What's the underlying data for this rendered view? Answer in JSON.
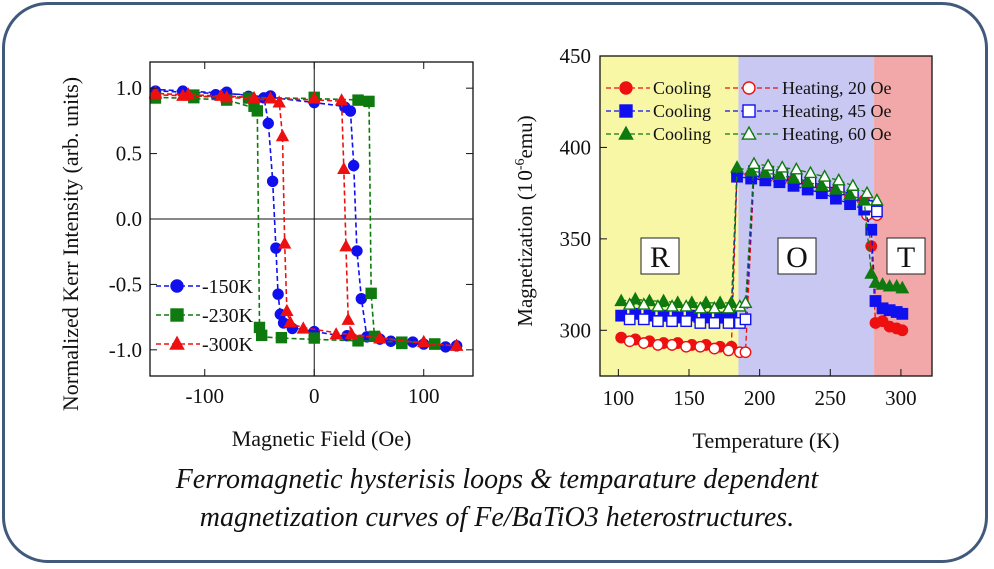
{
  "caption": {
    "line1": "Ferromagnetic hysterisis loops & temparature dependent",
    "line2": "magnetization curves of  Fe/BaTiO3 heterostructures."
  },
  "chart_data": [
    {
      "type": "line",
      "title": "",
      "xlabel": "Magnetic Field (Oe)",
      "ylabel": "Normalized Kerr Intensity (arb. units)",
      "xlim": [
        -150,
        145
      ],
      "ylim": [
        -1.2,
        1.2
      ],
      "xticks": [
        -100,
        0,
        100
      ],
      "xtick_labels": [
        "-100",
        "0",
        "100"
      ],
      "yticks": [
        1.0,
        0.5,
        0.0,
        -0.5,
        -1.0
      ],
      "ytick_labels": [
        "1.0",
        "0.5",
        "0.0",
        "-0.5",
        "-1.0"
      ],
      "zero_lines": true,
      "legend_position": "bottom-left",
      "series": [
        {
          "name": "150K",
          "color": "#1010ee",
          "marker": "circle",
          "descending": [
            [
              -145,
              0.98
            ],
            [
              -120,
              0.97
            ],
            [
              -90,
              0.96
            ],
            [
              -60,
              0.95
            ],
            [
              -46,
              0.93
            ],
            [
              -42,
              0.74
            ],
            [
              -38,
              0.3
            ],
            [
              -35,
              -0.22
            ],
            [
              -33,
              -0.58
            ],
            [
              -31,
              -0.72
            ],
            [
              -28,
              -0.8
            ],
            [
              -20,
              -0.83
            ],
            [
              0,
              -0.86
            ],
            [
              30,
              -0.9
            ],
            [
              60,
              -0.93
            ],
            [
              90,
              -0.95
            ],
            [
              120,
              -0.98
            ],
            [
              130,
              -0.98
            ]
          ],
          "ascending": [
            [
              130,
              -0.98
            ],
            [
              100,
              -0.96
            ],
            [
              70,
              -0.93
            ],
            [
              48,
              -0.9
            ],
            [
              43,
              -0.6
            ],
            [
              39,
              -0.24
            ],
            [
              36,
              0.42
            ],
            [
              33,
              0.83
            ],
            [
              28,
              0.86
            ],
            [
              0,
              0.89
            ],
            [
              -40,
              0.93
            ],
            [
              -80,
              0.96
            ],
            [
              -120,
              0.98
            ],
            [
              -145,
              0.99
            ]
          ]
        },
        {
          "name": "230K",
          "color": "#0f7a0f",
          "marker": "square",
          "descending": [
            [
              -145,
              0.93
            ],
            [
              -110,
              0.92
            ],
            [
              -80,
              0.91
            ],
            [
              -55,
              0.85
            ],
            [
              -52,
              0.82
            ],
            [
              -50,
              -0.82
            ],
            [
              -48,
              -0.9
            ],
            [
              -30,
              -0.91
            ],
            [
              0,
              -0.92
            ],
            [
              40,
              -0.93
            ],
            [
              80,
              -0.94
            ],
            [
              110,
              -0.95
            ]
          ],
          "ascending": [
            [
              110,
              -0.95
            ],
            [
              80,
              -0.93
            ],
            [
              55,
              -0.9
            ],
            [
              52,
              -0.58
            ],
            [
              50,
              0.91
            ],
            [
              40,
              0.91
            ],
            [
              0,
              0.92
            ],
            [
              -60,
              0.93
            ],
            [
              -110,
              0.94
            ]
          ]
        },
        {
          "name": "300K",
          "color": "#ee1010",
          "marker": "triangle",
          "descending": [
            [
              -145,
              0.95
            ],
            [
              -115,
              0.94
            ],
            [
              -85,
              0.93
            ],
            [
              -55,
              0.92
            ],
            [
              -32,
              0.9
            ],
            [
              -29,
              0.63
            ],
            [
              -27,
              -0.19
            ],
            [
              -25,
              -0.7
            ],
            [
              -22,
              -0.8
            ],
            [
              -10,
              -0.83
            ],
            [
              20,
              -0.87
            ],
            [
              60,
              -0.91
            ],
            [
              100,
              -0.95
            ],
            [
              130,
              -0.97
            ]
          ],
          "ascending": [
            [
              130,
              -0.97
            ],
            [
              100,
              -0.95
            ],
            [
              60,
              -0.91
            ],
            [
              34,
              -0.88
            ],
            [
              31,
              -0.76
            ],
            [
              29,
              -0.22
            ],
            [
              27,
              0.39
            ],
            [
              25,
              0.9
            ],
            [
              0,
              0.91
            ],
            [
              -40,
              0.92
            ],
            [
              -80,
              0.94
            ],
            [
              -120,
              0.95
            ],
            [
              -145,
              0.96
            ]
          ]
        }
      ]
    },
    {
      "type": "scatter",
      "title": "",
      "xlabel": "Temperature (K)",
      "ylabel": "Magnetization  (10 -6emu)",
      "ylabel_main": "Magnetization  (1",
      "ylabel_zero": "0",
      "ylabel_sup": "-6",
      "ylabel_unit": "emu)",
      "xlim": [
        87,
        322
      ],
      "ylim": [
        275,
        450
      ],
      "xticks": [
        100,
        150,
        200,
        250,
        300
      ],
      "xtick_labels": [
        "100",
        "150",
        "200",
        "250",
        "300"
      ],
      "yticks": [
        300,
        350,
        400,
        450
      ],
      "ytick_labels": [
        "300",
        "350",
        "400",
        "450"
      ],
      "phase_regions": [
        {
          "label": "R",
          "from": 87,
          "to": 185,
          "color": "#f7f7a6"
        },
        {
          "label": "O",
          "from": 185,
          "to": 281,
          "color": "#c8c8f2"
        },
        {
          "label": "T",
          "from": 281,
          "to": 322,
          "color": "#f2a8a8"
        }
      ],
      "legend_position": "top-left",
      "legend_rows": [
        {
          "cooling_label": "Cooling",
          "heating_label": "Heating, 20 Oe"
        },
        {
          "cooling_label": "Cooling",
          "heating_label": "Heating, 45 Oe"
        },
        {
          "cooling_label": "Cooling",
          "heating_label": "Heating, 60 Oe"
        }
      ],
      "series": [
        {
          "name": "Cooling 20 Oe",
          "color": "#ee1010",
          "marker": "circle",
          "filled": true,
          "points": [
            [
              102,
              296
            ],
            [
              112,
              295
            ],
            [
              122,
              294
            ],
            [
              132,
              293
            ],
            [
              142,
              293
            ],
            [
              152,
              292
            ],
            [
              162,
              292
            ],
            [
              172,
              291
            ],
            [
              180,
              291
            ],
            [
              184,
              386
            ],
            [
              194,
              385
            ],
            [
              204,
              384
            ],
            [
              214,
              383
            ],
            [
              224,
              382
            ],
            [
              234,
              380
            ],
            [
              244,
              378
            ],
            [
              254,
              376
            ],
            [
              264,
              373
            ],
            [
              274,
              371
            ],
            [
              279,
              346
            ],
            [
              282,
              304
            ],
            [
              287,
              305
            ],
            [
              292,
              302
            ],
            [
              297,
              301
            ],
            [
              301,
              300
            ]
          ]
        },
        {
          "name": "Heating, 20 Oe",
          "color": "#ee1010",
          "marker": "circle",
          "filled": false,
          "points": [
            [
              108,
              294
            ],
            [
              118,
              293
            ],
            [
              128,
              292
            ],
            [
              138,
              292
            ],
            [
              148,
              291
            ],
            [
              158,
              291
            ],
            [
              168,
              290
            ],
            [
              178,
              289
            ],
            [
              186,
              288
            ],
            [
              190,
              288
            ],
            [
              196,
              385
            ],
            [
              206,
              384
            ],
            [
              216,
              383
            ],
            [
              226,
              382
            ],
            [
              236,
              381
            ],
            [
              246,
              379
            ],
            [
              256,
              377
            ],
            [
              266,
              374
            ],
            [
              276,
              363
            ],
            [
              283,
              363
            ]
          ]
        },
        {
          "name": "Cooling 45 Oe",
          "color": "#1010ee",
          "marker": "square",
          "filled": true,
          "points": [
            [
              102,
              308
            ],
            [
              112,
              309
            ],
            [
              122,
              308
            ],
            [
              132,
              308
            ],
            [
              142,
              307
            ],
            [
              152,
              308
            ],
            [
              162,
              307
            ],
            [
              172,
              307
            ],
            [
              180,
              307
            ],
            [
              184,
              384
            ],
            [
              194,
              383
            ],
            [
              204,
              382
            ],
            [
              214,
              381
            ],
            [
              224,
              379
            ],
            [
              234,
              377
            ],
            [
              244,
              375
            ],
            [
              254,
              372
            ],
            [
              264,
              369
            ],
            [
              274,
              366
            ],
            [
              279,
              355
            ],
            [
              282,
              316
            ],
            [
              287,
              312
            ],
            [
              292,
              311
            ],
            [
              297,
              310
            ],
            [
              301,
              309
            ]
          ]
        },
        {
          "name": "Heating, 45 Oe",
          "color": "#1010ee",
          "marker": "square",
          "filled": false,
          "points": [
            [
              108,
              306
            ],
            [
              118,
              306
            ],
            [
              128,
              305
            ],
            [
              138,
              305
            ],
            [
              148,
              305
            ],
            [
              158,
              304
            ],
            [
              168,
              304
            ],
            [
              178,
              304
            ],
            [
              186,
              304
            ],
            [
              190,
              306
            ],
            [
              196,
              387
            ],
            [
              206,
              386
            ],
            [
              216,
              385
            ],
            [
              226,
              383
            ],
            [
              236,
              381
            ],
            [
              246,
              379
            ],
            [
              256,
              377
            ],
            [
              266,
              374
            ],
            [
              276,
              368
            ],
            [
              283,
              365
            ]
          ]
        },
        {
          "name": "Cooling 60 Oe",
          "color": "#0f7a0f",
          "marker": "triangle",
          "filled": true,
          "points": [
            [
              102,
              316
            ],
            [
              112,
              317
            ],
            [
              122,
              316
            ],
            [
              132,
              316
            ],
            [
              142,
              315
            ],
            [
              152,
              315
            ],
            [
              162,
              315
            ],
            [
              172,
              315
            ],
            [
              180,
              315
            ],
            [
              184,
              389
            ],
            [
              194,
              387
            ],
            [
              204,
              386
            ],
            [
              214,
              385
            ],
            [
              224,
              383
            ],
            [
              234,
              381
            ],
            [
              244,
              379
            ],
            [
              254,
              377
            ],
            [
              264,
              374
            ],
            [
              274,
              371
            ],
            [
              279,
              331
            ],
            [
              282,
              326
            ],
            [
              287,
              325
            ],
            [
              292,
              324
            ],
            [
              297,
              324
            ],
            [
              301,
              323
            ]
          ]
        },
        {
          "name": "Heating, 60 Oe",
          "color": "#0f7a0f",
          "marker": "triangle",
          "filled": false,
          "points": [
            [
              108,
              314
            ],
            [
              118,
              314
            ],
            [
              128,
              313
            ],
            [
              138,
              313
            ],
            [
              148,
              313
            ],
            [
              158,
              312
            ],
            [
              168,
              312
            ],
            [
              178,
              312
            ],
            [
              186,
              313
            ],
            [
              190,
              315
            ],
            [
              196,
              391
            ],
            [
              206,
              390
            ],
            [
              216,
              389
            ],
            [
              226,
              388
            ],
            [
              236,
              386
            ],
            [
              246,
              384
            ],
            [
              256,
              382
            ],
            [
              266,
              379
            ],
            [
              276,
              375
            ],
            [
              283,
              371
            ]
          ]
        }
      ]
    }
  ]
}
